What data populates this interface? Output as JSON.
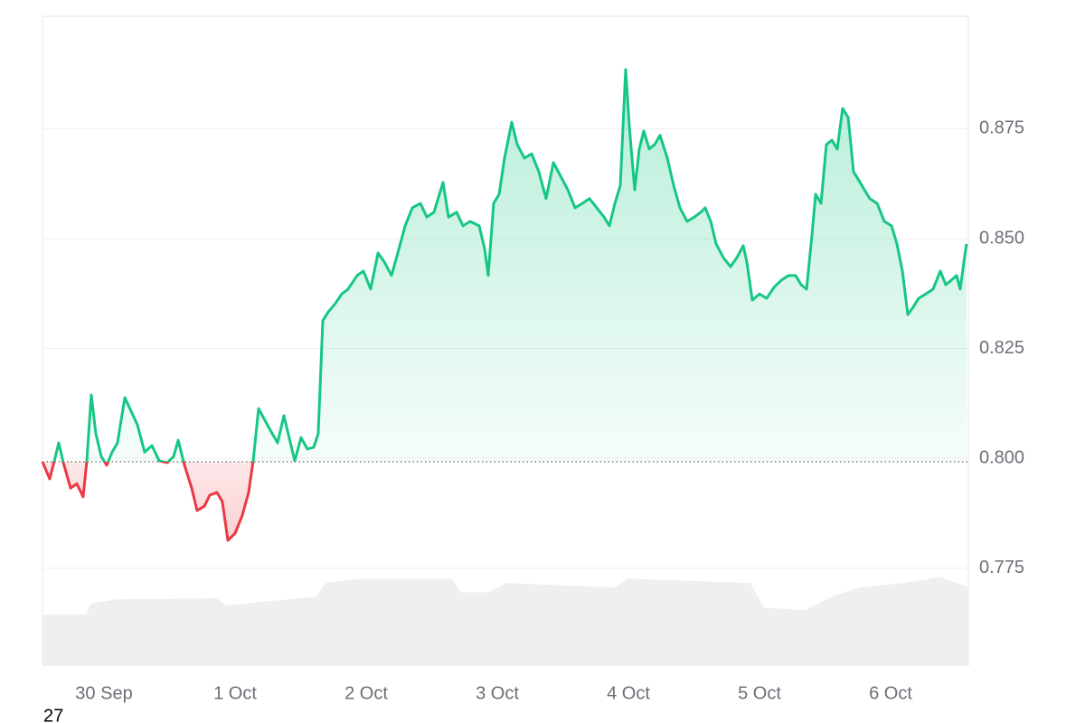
{
  "chart_data": {
    "type": "line",
    "corner_label": "27",
    "x": [
      -0.469,
      -0.414,
      -0.379,
      -0.345,
      -0.31,
      -0.255,
      -0.207,
      -0.159,
      -0.131,
      -0.097,
      -0.062,
      -0.021,
      0.021,
      0.062,
      0.103,
      0.159,
      0.207,
      0.255,
      0.31,
      0.366,
      0.421,
      0.483,
      0.531,
      0.566,
      0.614,
      0.669,
      0.71,
      0.766,
      0.807,
      0.862,
      0.903,
      0.945,
      1.0,
      1.055,
      1.103,
      1.138,
      1.179,
      1.228,
      1.276,
      1.324,
      1.372,
      1.414,
      1.455,
      1.503,
      1.552,
      1.6,
      1.634,
      1.669,
      1.71,
      1.759,
      1.814,
      1.862,
      1.931,
      1.979,
      2.034,
      2.09,
      2.138,
      2.193,
      2.241,
      2.297,
      2.352,
      2.414,
      2.462,
      2.517,
      2.586,
      2.628,
      2.69,
      2.738,
      2.793,
      2.862,
      2.903,
      2.931,
      2.972,
      3.014,
      3.055,
      3.11,
      3.152,
      3.207,
      3.262,
      3.317,
      3.372,
      3.428,
      3.483,
      3.538,
      3.593,
      3.648,
      3.703,
      3.759,
      3.814,
      3.855,
      3.897,
      3.938,
      3.979,
      4.007,
      4.048,
      4.083,
      4.117,
      4.159,
      4.2,
      4.241,
      4.297,
      4.345,
      4.393,
      4.448,
      4.503,
      4.552,
      4.586,
      4.628,
      4.669,
      4.724,
      4.779,
      4.828,
      4.876,
      4.903,
      4.945,
      5.0,
      5.055,
      5.11,
      5.166,
      5.221,
      5.276,
      5.317,
      5.359,
      5.4,
      5.428,
      5.469,
      5.51,
      5.552,
      5.593,
      5.634,
      5.676,
      5.717,
      5.759,
      5.8,
      5.841,
      5.897,
      5.952,
      6.007,
      6.048,
      6.09,
      6.131,
      6.172,
      6.214,
      6.269,
      6.324,
      6.379,
      6.421,
      6.462,
      6.503,
      6.531,
      6.559,
      6.579
    ],
    "values": [
      0.7992,
      0.7953,
      0.7994,
      0.8035,
      0.799,
      0.7932,
      0.7942,
      0.7912,
      0.7994,
      0.8144,
      0.8056,
      0.8004,
      0.7984,
      0.8014,
      0.8035,
      0.8138,
      0.8107,
      0.8076,
      0.8014,
      0.8029,
      0.7994,
      0.799,
      0.8004,
      0.8041,
      0.7984,
      0.7932,
      0.7881,
      0.7891,
      0.7916,
      0.7922,
      0.7901,
      0.7813,
      0.7829,
      0.787,
      0.7922,
      0.7994,
      0.8113,
      0.8086,
      0.806,
      0.8035,
      0.8097,
      0.8045,
      0.7994,
      0.8047,
      0.8021,
      0.8025,
      0.8056,
      0.8313,
      0.8333,
      0.835,
      0.8374,
      0.8385,
      0.8416,
      0.8426,
      0.8385,
      0.8467,
      0.8447,
      0.8416,
      0.8467,
      0.8529,
      0.857,
      0.858,
      0.8549,
      0.856,
      0.8628,
      0.8549,
      0.856,
      0.8529,
      0.8539,
      0.8529,
      0.8477,
      0.8416,
      0.858,
      0.8601,
      0.8683,
      0.8765,
      0.8714,
      0.8683,
      0.8693,
      0.8652,
      0.8591,
      0.8673,
      0.8642,
      0.8611,
      0.857,
      0.858,
      0.8591,
      0.857,
      0.8549,
      0.8529,
      0.858,
      0.8621,
      0.8885,
      0.8755,
      0.8611,
      0.8704,
      0.8745,
      0.8704,
      0.8714,
      0.8735,
      0.8683,
      0.8621,
      0.857,
      0.8539,
      0.8549,
      0.856,
      0.857,
      0.8539,
      0.8488,
      0.8457,
      0.8436,
      0.8457,
      0.8484,
      0.8447,
      0.836,
      0.8374,
      0.8364,
      0.8389,
      0.8405,
      0.8416,
      0.8416,
      0.8395,
      0.8385,
      0.8508,
      0.8601,
      0.858,
      0.8714,
      0.8724,
      0.8704,
      0.8796,
      0.8776,
      0.8652,
      0.8632,
      0.8611,
      0.8591,
      0.858,
      0.8539,
      0.8529,
      0.8488,
      0.8426,
      0.8327,
      0.8344,
      0.8364,
      0.8374,
      0.8385,
      0.8426,
      0.8395,
      0.8405,
      0.8416,
      0.8385,
      0.8447,
      0.8488
    ],
    "baseline": 0.7992,
    "up_color": "#16c784",
    "down_color": "#ea3943",
    "volume": {
      "color": "#efefef",
      "x": [
        -0.469,
        -0.138,
        -0.103,
        0.103,
        0.862,
        0.931,
        1.276,
        1.621,
        1.69,
        1.966,
        2.655,
        2.724,
        2.931,
        3.069,
        3.897,
        4.0,
        4.931,
        5.034,
        5.345,
        5.552,
        5.759,
        6.103,
        6.379,
        6.593
      ],
      "values": [
        0.7644,
        0.7644,
        0.7669,
        0.7679,
        0.7681,
        0.7665,
        0.7675,
        0.7685,
        0.7716,
        0.7726,
        0.7726,
        0.7695,
        0.7695,
        0.7716,
        0.7706,
        0.7726,
        0.7716,
        0.766,
        0.7654,
        0.7685,
        0.7706,
        0.7716,
        0.773,
        0.7706
      ]
    },
    "xlim": [
      -0.469,
      6.593
    ],
    "xticks": [
      {
        "value": 0,
        "label": "30 Sep"
      },
      {
        "value": 1,
        "label": "1 Oct"
      },
      {
        "value": 2,
        "label": "2 Oct"
      },
      {
        "value": 3,
        "label": "3 Oct"
      },
      {
        "value": 4,
        "label": "4 Oct"
      },
      {
        "value": 5,
        "label": "5 Oct"
      },
      {
        "value": 6,
        "label": "6 Oct"
      }
    ],
    "ylim": [
      0.7527,
      0.9006
    ],
    "yticks": [
      {
        "value": 0.775,
        "label": "0.775"
      },
      {
        "value": 0.8,
        "label": "0.800"
      },
      {
        "value": 0.825,
        "label": "0.825"
      },
      {
        "value": 0.85,
        "label": "0.850"
      },
      {
        "value": 0.875,
        "label": "0.875"
      }
    ],
    "grid": true
  }
}
